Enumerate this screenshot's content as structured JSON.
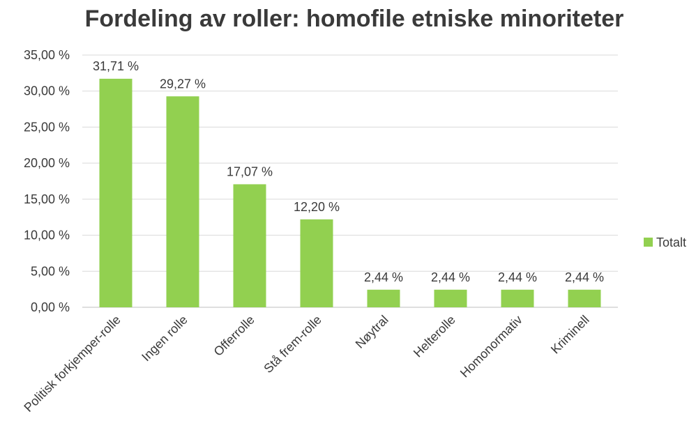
{
  "chart_data": {
    "type": "bar",
    "title": "Fordeling av roller: homofile etniske minoriteter",
    "xlabel": "",
    "ylabel": "",
    "categories": [
      "Politisk forkjemper-rolle",
      "Ingen rolle",
      "Offerrolle",
      "Stå frem-rolle",
      "Nøytral",
      "Helterolle",
      "Homonormativ",
      "Kriminell"
    ],
    "series": [
      {
        "name": "Totalt",
        "values": [
          31.71,
          29.27,
          17.07,
          12.2,
          2.44,
          2.44,
          2.44,
          2.44
        ],
        "data_labels": [
          "31,71 %",
          "29,27 %",
          "17,07 %",
          "12,20 %",
          "2,44 %",
          "2,44 %",
          "2,44 %",
          "2,44 %"
        ]
      }
    ],
    "ylim": [
      0,
      35
    ],
    "y_ticks": [
      0,
      5,
      10,
      15,
      20,
      25,
      30,
      35
    ],
    "y_tick_labels": [
      "0,00 %",
      "5,00 %",
      "10,00 %",
      "15,00 %",
      "20,00 %",
      "25,00 %",
      "30,00 %",
      "35,00 %"
    ],
    "grid": true,
    "legend_position": "right",
    "colors": {
      "bar": "#92d050",
      "text": "#3a3a3a",
      "grid": "#d9d9d9"
    }
  }
}
